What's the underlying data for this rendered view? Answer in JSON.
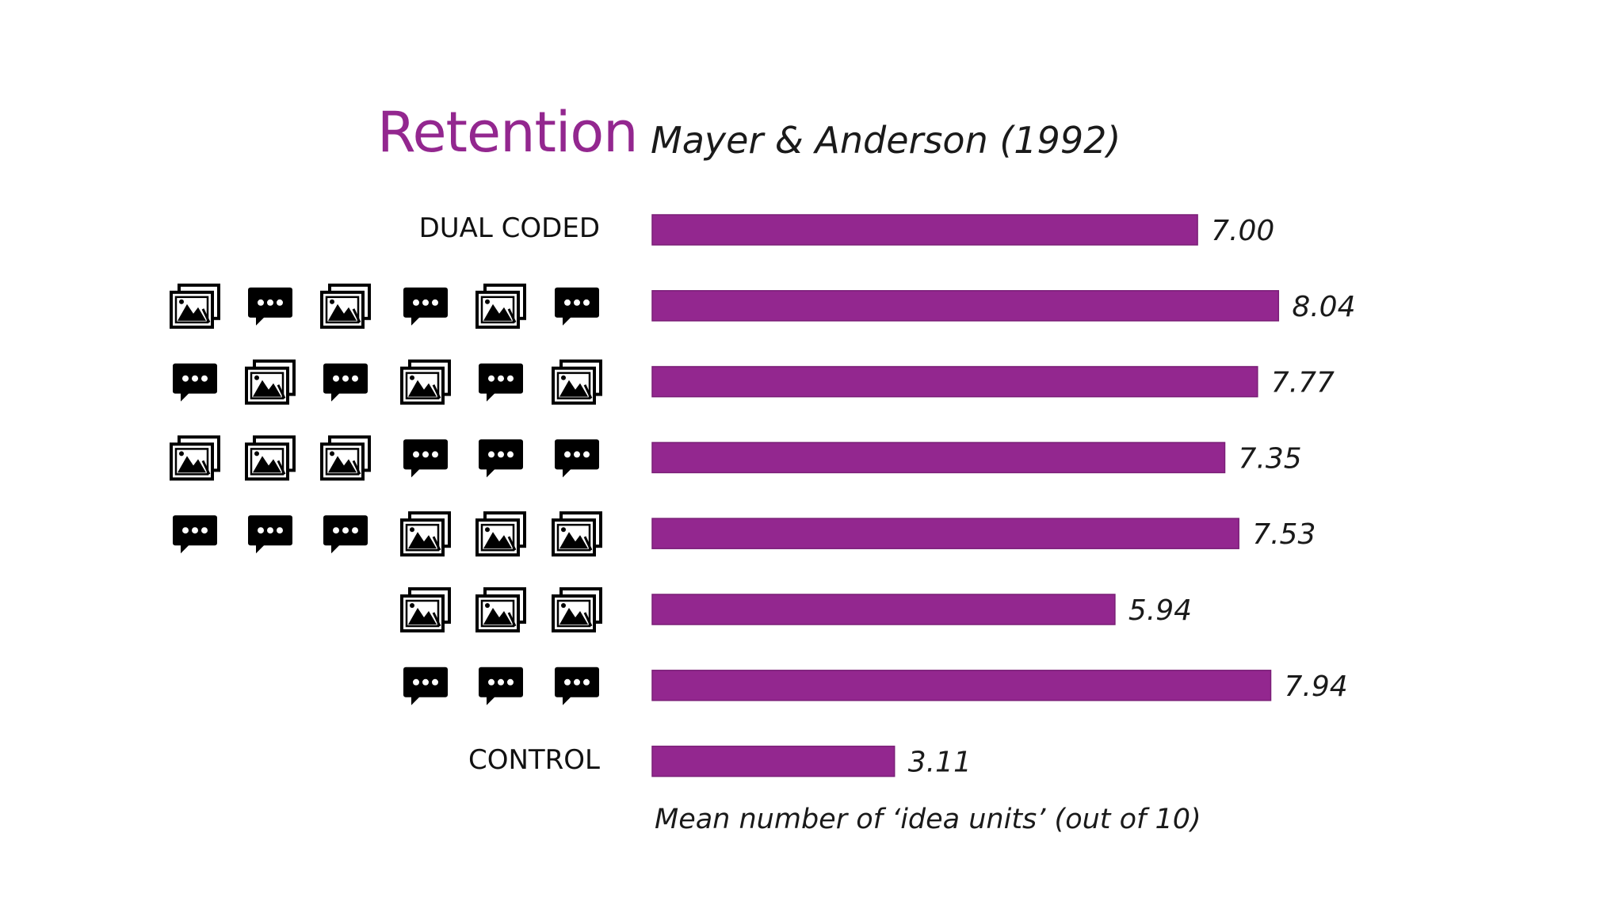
{
  "title": "Retention",
  "subtitle": "Mayer & Anderson (1992)",
  "footnote": "Mean number of ‘idea units’ (out of 10)",
  "colors": {
    "accent": "#93278f",
    "bar": "#93278f",
    "icon": "#000000"
  },
  "icons": {
    "picture": "image-stack-icon",
    "text": "speech-bubble-icon"
  },
  "chart_data": {
    "type": "bar",
    "orientation": "horizontal",
    "xlim": [
      0,
      10
    ],
    "rows": [
      {
        "label": "DUAL CODED",
        "value": 7.0,
        "value_label": "7.00",
        "icons": []
      },
      {
        "label": "",
        "value": 8.04,
        "value_label": "8.04",
        "icons": [
          "picture",
          "text",
          "picture",
          "text",
          "picture",
          "text"
        ]
      },
      {
        "label": "",
        "value": 7.77,
        "value_label": "7.77",
        "icons": [
          "text",
          "picture",
          "text",
          "picture",
          "text",
          "picture"
        ]
      },
      {
        "label": "",
        "value": 7.35,
        "value_label": "7.35",
        "icons": [
          "picture",
          "picture",
          "picture",
          "text",
          "text",
          "text"
        ]
      },
      {
        "label": "",
        "value": 7.53,
        "value_label": "7.53",
        "icons": [
          "text",
          "text",
          "text",
          "picture",
          "picture",
          "picture"
        ]
      },
      {
        "label": "",
        "value": 5.94,
        "value_label": "5.94",
        "icons": [
          "picture",
          "picture",
          "picture"
        ]
      },
      {
        "label": "",
        "value": 7.94,
        "value_label": "7.94",
        "icons": [
          "text",
          "text",
          "text"
        ]
      },
      {
        "label": "CONTROL",
        "value": 3.11,
        "value_label": "3.11",
        "icons": []
      }
    ]
  }
}
